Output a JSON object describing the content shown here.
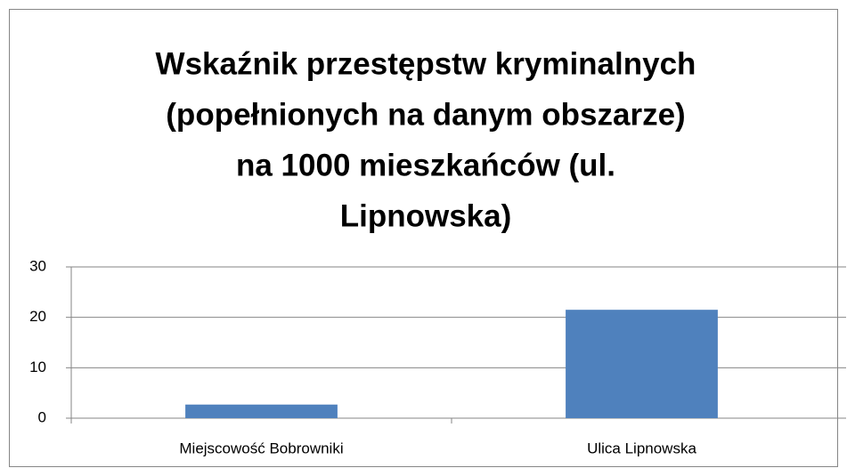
{
  "chart_data": {
    "type": "bar",
    "title": [
      "Wskaźnik przestępstw kryminalnych",
      "(popełnionych na danym obszarze)",
      "na 1000 mieszkańców (ul.",
      "Lipnowska)"
    ],
    "categories": [
      "Miejscowość Bobrowniki",
      "Ulica Lipnowska"
    ],
    "values": [
      2.7,
      21.5
    ],
    "color": "#4f81bd",
    "ylim": [
      0,
      30
    ],
    "yticks": [
      0,
      10,
      20,
      30
    ],
    "grid": true
  }
}
